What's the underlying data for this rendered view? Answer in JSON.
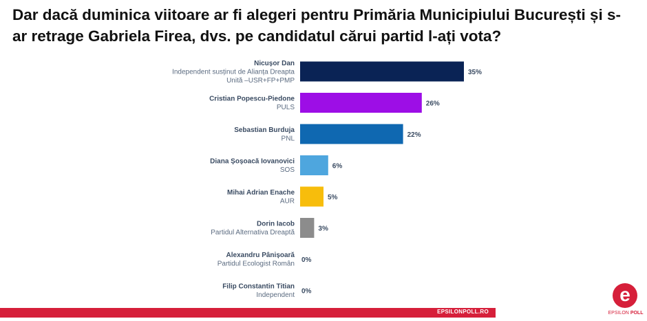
{
  "title": "Dar dacă duminica viitoare ar fi alegeri pentru Primăria Municipiului București și s-ar retrage Gabriela Firea, dvs. pe candidatul cărui partid l-ați vota?",
  "footer": {
    "url": "EPSILONPOLL.RO"
  },
  "logo": {
    "glyph": "e",
    "word1": "EPSILON",
    "word2": "POLL",
    "color": "#d61f3a"
  },
  "chart_data": {
    "type": "bar",
    "orientation": "horizontal",
    "title": "Dar dacă duminica viitoare ar fi alegeri pentru Primăria Municipiului București și s-ar retrage Gabriela Firea, dvs. pe candidatul cărui partid l-ați vota?",
    "unit": "%",
    "xlim": [
      0,
      35
    ],
    "grid": false,
    "legend": "none",
    "categories": [
      {
        "name": "Nicușor Dan",
        "party": [
          "Independent susținut de Alianța Dreapta",
          "Unită –USR+FP+PMP"
        ],
        "value": 35,
        "label": "35%",
        "color": "#0a2355"
      },
      {
        "name": "Cristian Popescu-Piedone",
        "party": [
          "PULS"
        ],
        "value": 26,
        "label": "26%",
        "color": "#9d0ee6"
      },
      {
        "name": "Sebastian Burduja",
        "party": [
          "PNL"
        ],
        "value": 22,
        "label": "22%",
        "color": "#0f68b1"
      },
      {
        "name": "Diana Șoșoacă Iovanovici",
        "party": [
          "SOS"
        ],
        "value": 6,
        "label": "6%",
        "color": "#4ea6de"
      },
      {
        "name": "Mihai Adrian Enache",
        "party": [
          "AUR"
        ],
        "value": 5,
        "label": "5%",
        "color": "#f7bd0c"
      },
      {
        "name": "Dorin Iacob",
        "party": [
          "Partidul Alternativa Dreaptă"
        ],
        "value": 3,
        "label": "3%",
        "color": "#8c8c8c"
      },
      {
        "name": "Alexandru Pânișoară",
        "party": [
          "Partidul Ecologist Român"
        ],
        "value": 0,
        "label": "0%",
        "color": "#cccccc"
      },
      {
        "name": "Filip Constantin Titian",
        "party": [
          "Independent"
        ],
        "value": 0,
        "label": "0%",
        "color": "#cccccc"
      }
    ]
  }
}
